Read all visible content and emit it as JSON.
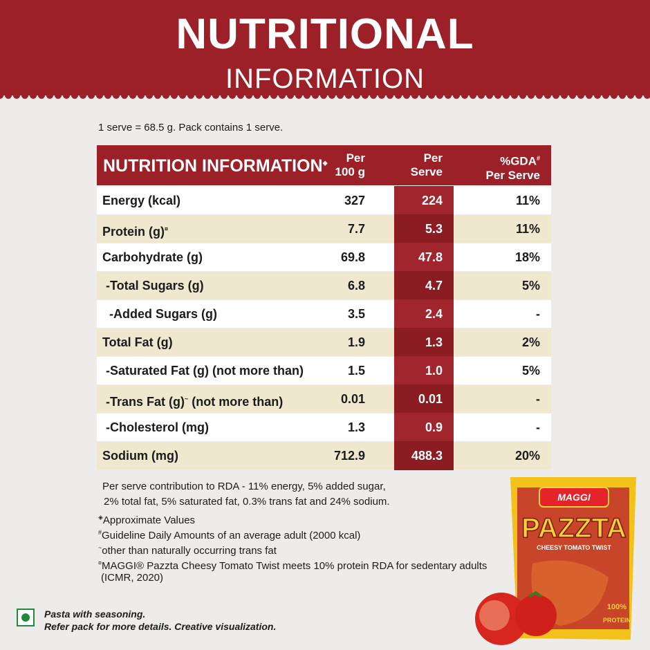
{
  "header": {
    "title": "NUTRITIONAL",
    "subtitle": "INFORMATION"
  },
  "serving_note": "1 serve = 68.5 g. Pack contains 1 serve.",
  "table": {
    "columns": [
      {
        "lines": [
          "NUTRITION INFORMATION"
        ],
        "note": "◈"
      },
      {
        "lines": [
          "Per",
          "100 g"
        ]
      },
      {
        "lines": [
          "Per",
          "Serve"
        ]
      },
      {
        "lines": [
          "%GDA",
          "Per Serve"
        ],
        "note": "#"
      }
    ],
    "rows": [
      {
        "name": "Energy (kcal)",
        "values": [
          "327",
          "224",
          "11%"
        ]
      },
      {
        "name": "Protein (g)",
        "note": "¤",
        "values": [
          "7.7",
          "5.3",
          "11%"
        ]
      },
      {
        "name": "Carbohydrate (g)",
        "values": [
          "69.8",
          "47.8",
          "18%"
        ]
      },
      {
        "name": " -Total Sugars (g)",
        "values": [
          "6.8",
          "4.7",
          "5%"
        ]
      },
      {
        "name": "  -Added Sugars (g)",
        "values": [
          "3.5",
          "2.4",
          "-"
        ]
      },
      {
        "name": "Total Fat (g)",
        "values": [
          "1.9",
          "1.3",
          "2%"
        ]
      },
      {
        "name": " -Saturated Fat (g) (not more than)",
        "values": [
          "1.5",
          "1.0",
          "5%"
        ]
      },
      {
        "name": " -Trans Fat (g)",
        "note": "~",
        "suffix": " (not more than)",
        "values": [
          "0.01",
          "0.01",
          "-"
        ]
      },
      {
        "name": " -Cholesterol (mg)",
        "values": [
          "1.3",
          "0.9",
          "-"
        ]
      },
      {
        "name": "Sodium (mg)",
        "values": [
          "712.9",
          "488.3",
          "20%"
        ]
      }
    ]
  },
  "rda_note": [
    "Per serve contribution to RDA - 11% energy, 5% added sugar,",
    "2% total fat, 5% saturated fat, 0.3% trans fat and 24% sodium."
  ],
  "notes": [
    {
      "symbol": "◈",
      "lines": [
        "Approximate Values"
      ]
    },
    {
      "symbol": "#",
      "lines": [
        "Guideline Daily Amounts of an average adult (2000 kcal)"
      ]
    },
    {
      "symbol": "~",
      "lines": [
        "other than naturally occurring trans fat"
      ]
    },
    {
      "symbol": "¤",
      "lines": [
        "MAGGI® Pazzta Cheesy Tomato Twist meets 10% protein RDA for sedentary adults",
        "(ICMR, 2020)"
      ]
    }
  ],
  "footer": [
    "Pasta with seasoning.",
    "Refer pack for more details. Creative visualization."
  ],
  "product": {
    "brand": "MAGGI",
    "name": "PAZZTA",
    "variant": "CHEESY TOMATO TWIST",
    "badge": "100%",
    "badge_text": "PROTEIN"
  }
}
